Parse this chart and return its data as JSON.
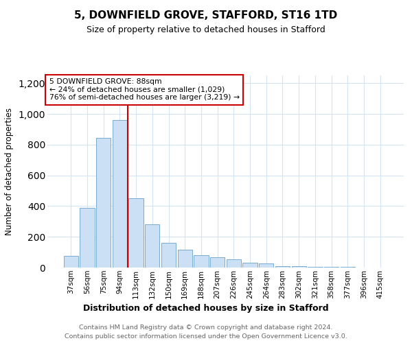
{
  "title1": "5, DOWNFIELD GROVE, STAFFORD, ST16 1TD",
  "title2": "Size of property relative to detached houses in Stafford",
  "xlabel": "Distribution of detached houses by size in Stafford",
  "ylabel": "Number of detached properties",
  "categories": [
    "37sqm",
    "56sqm",
    "75sqm",
    "94sqm",
    "113sqm",
    "132sqm",
    "150sqm",
    "169sqm",
    "188sqm",
    "207sqm",
    "226sqm",
    "245sqm",
    "264sqm",
    "283sqm",
    "302sqm",
    "321sqm",
    "358sqm",
    "377sqm",
    "396sqm",
    "415sqm"
  ],
  "values": [
    75,
    390,
    845,
    960,
    450,
    280,
    160,
    115,
    80,
    65,
    55,
    30,
    25,
    8,
    8,
    5,
    3,
    3,
    2,
    2
  ],
  "bar_color": "#cce0f5",
  "bar_edge_color": "#7aaad0",
  "vline_x": 3.5,
  "vline_color": "#cc0000",
  "box_text": "5 DOWNFIELD GROVE: 88sqm\n← 24% of detached houses are smaller (1,029)\n76% of semi-detached houses are larger (3,219) →",
  "box_edge_color": "#cc0000",
  "ylim": [
    0,
    1250
  ],
  "yticks": [
    0,
    200,
    400,
    600,
    800,
    1000,
    1200
  ],
  "footer_line1": "Contains HM Land Registry data © Crown copyright and database right 2024.",
  "footer_line2": "Contains public sector information licensed under the Open Government Licence v3.0.",
  "bg_color": "#ffffff",
  "grid_color": "#d4e4f4"
}
